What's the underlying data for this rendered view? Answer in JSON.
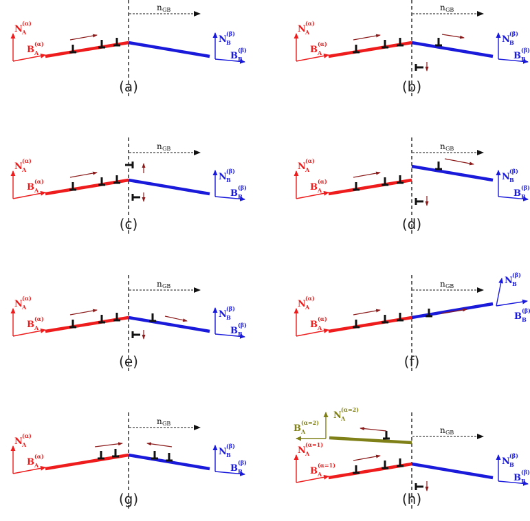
{
  "colors": {
    "grain_a": "#ee1c1c",
    "grain_b": "#1a1adb",
    "grain_a2": "#808018",
    "dislocation": "#111111",
    "glide_arrow": "#8b1a1a",
    "boundary": "#222222"
  },
  "labels": {
    "n_gb": "n",
    "n_gb_sub": "GB",
    "NA": "N",
    "NA_sub": "A",
    "NA_sup": "(α)",
    "BA": "B",
    "BA_sub": "A",
    "BA_sup": "(α)",
    "NB": "N",
    "NB_sub": "B",
    "NB_sup": "(β)",
    "BB": "B",
    "BB_sub": "B",
    "BB_sup": "(β)",
    "NA1_sup": "(α=1)",
    "BA1_sup": "(α=1)",
    "NA2_sup": "(α=2)",
    "BA2_sup": "(α=2)"
  },
  "panels": [
    {
      "id": "a",
      "caption": "(a)"
    },
    {
      "id": "b",
      "caption": "(b)"
    },
    {
      "id": "c",
      "caption": "(c)"
    },
    {
      "id": "d",
      "caption": "(d)"
    },
    {
      "id": "e",
      "caption": "(e)"
    },
    {
      "id": "f",
      "caption": "(f)"
    },
    {
      "id": "g",
      "caption": "(g)"
    },
    {
      "id": "h",
      "caption": "(h)"
    }
  ]
}
